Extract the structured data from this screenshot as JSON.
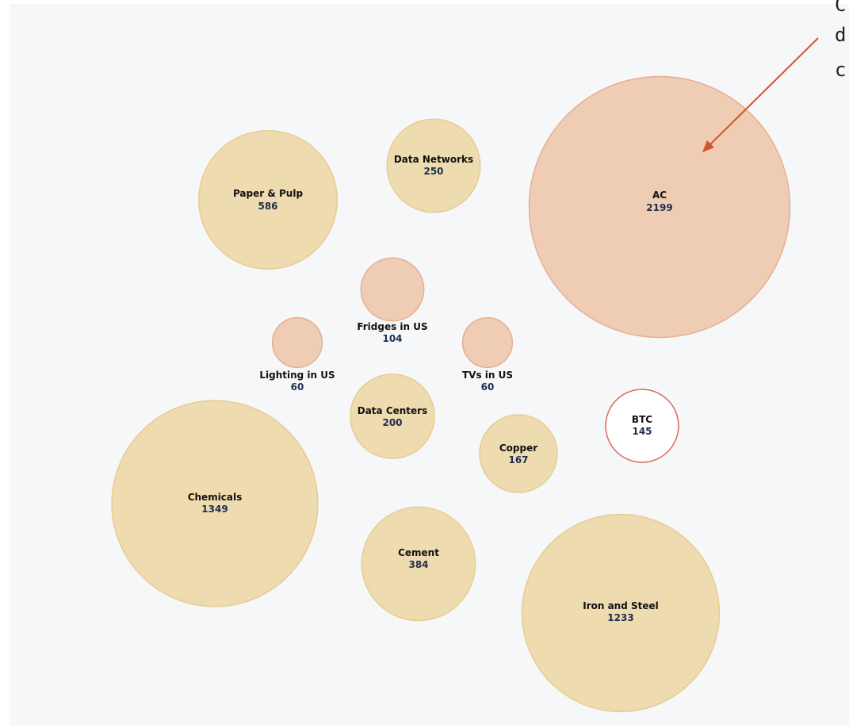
{
  "chart_data": {
    "type": "bubble",
    "categories": [
      "AC",
      "Paper & Pulp",
      "Data Networks",
      "Fridges in US",
      "Lighting in US",
      "TVs in US",
      "Data Centers",
      "Copper",
      "BTC",
      "Chemicals",
      "Cement",
      "Iron and Steel"
    ],
    "values": [
      2199,
      586,
      250,
      104,
      60,
      60,
      200,
      167,
      145,
      1349,
      384,
      1233
    ],
    "colors": [
      "#efcdb5",
      "#eedbb0",
      "#eedbb0",
      "#efcdb5",
      "#efcdb5",
      "#efcdb5",
      "#eedbb0",
      "#eedbb0",
      "#ffffff",
      "#eedbb0",
      "#eedbb0",
      "#eedbb0"
    ],
    "stroke_colors": [
      "#e6ae90",
      "#e8cc92",
      "#e8cc92",
      "#e6ae90",
      "#e6ae90",
      "#e6ae90",
      "#e8cc92",
      "#e8cc92",
      "#d9685a",
      "#e8cc92",
      "#e8cc92",
      "#e8cc92"
    ]
  },
  "annotation": {
    "lines": [
      "C",
      "d",
      "c"
    ]
  }
}
